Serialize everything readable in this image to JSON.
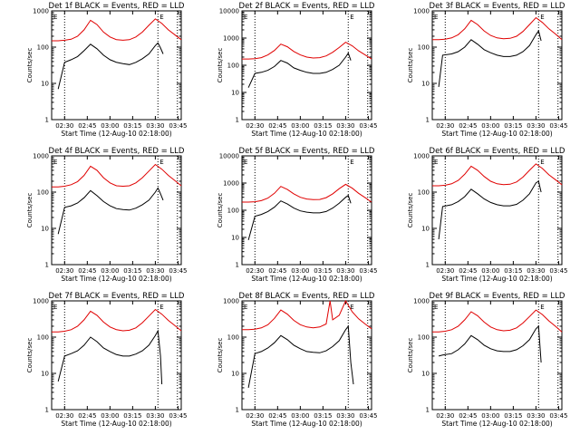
{
  "chart_data": [
    {
      "type": "line",
      "title": "Det 1f BLACK = Events, RED = LLD",
      "xlabel": "Start Time (12-Aug-10 02:18:00)",
      "ylabel": "Counts/sec",
      "ylim": [
        1,
        1000
      ],
      "yscale": "log",
      "xlim": [
        0,
        100
      ],
      "xtick_labels": [
        "02:30",
        "02:45",
        "03:00",
        "03:15",
        "03:30",
        "03:45"
      ],
      "ytick_labels": [
        "1",
        "10",
        "100",
        "1000"
      ],
      "vlines": [
        10,
        82,
        97
      ],
      "marker": "E",
      "series": [
        {
          "name": "Events",
          "color": "#000000",
          "x": [
            0,
            5,
            10,
            15,
            20,
            25,
            30,
            35,
            40,
            45,
            50,
            55,
            60,
            65,
            70,
            75,
            80,
            82,
            84,
            86
          ],
          "y": [
            null,
            7,
            38,
            45,
            55,
            80,
            120,
            90,
            60,
            45,
            38,
            35,
            33,
            38,
            48,
            65,
            110,
            130,
            95,
            65
          ]
        },
        {
          "name": "LLD",
          "color": "#e00000",
          "x": [
            0,
            5,
            10,
            15,
            20,
            25,
            30,
            35,
            40,
            45,
            50,
            55,
            60,
            65,
            70,
            75,
            80,
            85,
            90,
            95,
            100
          ],
          "y": [
            150,
            150,
            155,
            165,
            200,
            300,
            550,
            420,
            260,
            190,
            160,
            155,
            160,
            190,
            260,
            400,
            600,
            450,
            300,
            220,
            160
          ]
        }
      ]
    },
    {
      "type": "line",
      "title": "Det 2f BLACK = Events, RED = LLD",
      "xlabel": "Start Time (12-Aug-10 02:18:00)",
      "ylabel": "Counts/sec",
      "ylim": [
        1,
        10000
      ],
      "yscale": "log",
      "xlim": [
        0,
        100
      ],
      "xtick_labels": [
        "02:30",
        "02:45",
        "03:00",
        "03:15",
        "03:30",
        "03:45"
      ],
      "ytick_labels": [
        "1",
        "10",
        "100",
        "1000",
        "10000"
      ],
      "vlines": [
        10,
        82,
        97
      ],
      "marker": "E",
      "series": [
        {
          "name": "Events",
          "color": "#000000",
          "x": [
            0,
            5,
            10,
            15,
            20,
            25,
            30,
            35,
            40,
            45,
            50,
            55,
            60,
            65,
            70,
            75,
            80,
            82,
            84
          ],
          "y": [
            null,
            15,
            50,
            55,
            65,
            90,
            150,
            120,
            80,
            65,
            55,
            50,
            50,
            55,
            70,
            100,
            200,
            280,
            150
          ]
        },
        {
          "name": "LLD",
          "color": "#e00000",
          "x": [
            0,
            5,
            10,
            15,
            20,
            25,
            30,
            35,
            40,
            45,
            50,
            55,
            60,
            65,
            70,
            75,
            80,
            85,
            90,
            95,
            100
          ],
          "y": [
            170,
            170,
            175,
            190,
            240,
            350,
            600,
            480,
            320,
            240,
            200,
            185,
            190,
            220,
            300,
            450,
            700,
            520,
            340,
            240,
            170
          ]
        }
      ]
    },
    {
      "type": "line",
      "title": "Det 3f BLACK = Events, RED = LLD",
      "xlabel": "Start Time (12-Aug-10 02:18:00)",
      "ylabel": "Counts/sec",
      "ylim": [
        1,
        1000
      ],
      "yscale": "log",
      "xlim": [
        0,
        100
      ],
      "xtick_labels": [
        "02:30",
        "02:45",
        "03:00",
        "03:15",
        "03:30",
        "03:45"
      ],
      "ytick_labels": [
        "1",
        "10",
        "100",
        "1000"
      ],
      "vlines": [
        10,
        82,
        97
      ],
      "marker": "E",
      "series": [
        {
          "name": "Events",
          "color": "#000000",
          "x": [
            0,
            5,
            8,
            15,
            20,
            25,
            30,
            35,
            40,
            45,
            50,
            55,
            60,
            65,
            70,
            75,
            80,
            82,
            84
          ],
          "y": [
            null,
            8,
            60,
            65,
            75,
            100,
            160,
            120,
            85,
            70,
            60,
            55,
            55,
            60,
            75,
            110,
            220,
            280,
            150
          ]
        },
        {
          "name": "LLD",
          "color": "#e00000",
          "x": [
            0,
            5,
            10,
            15,
            20,
            25,
            30,
            35,
            40,
            45,
            50,
            55,
            60,
            65,
            70,
            75,
            80,
            85,
            90,
            95,
            100
          ],
          "y": [
            160,
            160,
            165,
            180,
            220,
            320,
            550,
            420,
            280,
            210,
            180,
            170,
            175,
            200,
            270,
            420,
            650,
            480,
            320,
            230,
            160
          ]
        }
      ]
    },
    {
      "type": "line",
      "title": "Det 4f BLACK = Events, RED = LLD",
      "xlabel": "Start Time (12-Aug-10 02:18:00)",
      "ylabel": "Counts/sec",
      "ylim": [
        1,
        1000
      ],
      "yscale": "log",
      "xlim": [
        0,
        100
      ],
      "xtick_labels": [
        "02:30",
        "02:45",
        "03:00",
        "03:15",
        "03:30",
        "03:45"
      ],
      "ytick_labels": [
        "1",
        "10",
        "100",
        "1000"
      ],
      "vlines": [
        10,
        82,
        97
      ],
      "marker": "E",
      "series": [
        {
          "name": "Events",
          "color": "#000000",
          "x": [
            0,
            5,
            10,
            15,
            20,
            25,
            30,
            35,
            40,
            45,
            50,
            55,
            60,
            65,
            70,
            75,
            80,
            82,
            84,
            86
          ],
          "y": [
            null,
            7,
            38,
            42,
            50,
            70,
            110,
            80,
            55,
            42,
            35,
            33,
            32,
            36,
            45,
            60,
            100,
            130,
            90,
            60
          ]
        },
        {
          "name": "LLD",
          "color": "#e00000",
          "x": [
            0,
            5,
            10,
            15,
            20,
            25,
            30,
            35,
            40,
            45,
            50,
            55,
            60,
            65,
            70,
            75,
            80,
            85,
            90,
            95,
            100
          ],
          "y": [
            140,
            140,
            145,
            160,
            195,
            290,
            520,
            400,
            250,
            180,
            150,
            145,
            150,
            180,
            250,
            380,
            580,
            430,
            290,
            210,
            150
          ]
        }
      ]
    },
    {
      "type": "line",
      "title": "Det 5f BLACK = Events, RED = LLD",
      "xlabel": "Start Time (12-Aug-10 02:18:00)",
      "ylabel": "Counts/sec",
      "ylim": [
        1,
        10000
      ],
      "yscale": "log",
      "xlim": [
        0,
        100
      ],
      "xtick_labels": [
        "02:30",
        "02:45",
        "03:00",
        "03:15",
        "03:30",
        "03:45"
      ],
      "ytick_labels": [
        "1",
        "10",
        "100",
        "1000",
        "10000"
      ],
      "vlines": [
        10,
        82,
        97
      ],
      "marker": "E",
      "series": [
        {
          "name": "Events",
          "color": "#000000",
          "x": [
            0,
            5,
            10,
            15,
            20,
            25,
            30,
            35,
            40,
            45,
            50,
            55,
            60,
            65,
            70,
            75,
            80,
            82,
            84
          ],
          "y": [
            null,
            8,
            60,
            70,
            90,
            130,
            220,
            170,
            120,
            95,
            85,
            80,
            80,
            90,
            120,
            180,
            300,
            350,
            180
          ]
        },
        {
          "name": "LLD",
          "color": "#e00000",
          "x": [
            0,
            5,
            10,
            15,
            20,
            25,
            30,
            35,
            40,
            45,
            50,
            55,
            60,
            65,
            70,
            75,
            80,
            85,
            90,
            95,
            100
          ],
          "y": [
            200,
            200,
            205,
            225,
            280,
            420,
            750,
            580,
            400,
            300,
            260,
            245,
            250,
            290,
            400,
            620,
            900,
            650,
            420,
            290,
            200
          ]
        }
      ]
    },
    {
      "type": "line",
      "title": "Det 6f BLACK = Events, RED = LLD",
      "xlabel": "Start Time (12-Aug-10 02:18:00)",
      "ylabel": "Counts/sec",
      "ylim": [
        1,
        1000
      ],
      "yscale": "log",
      "xlim": [
        0,
        100
      ],
      "xtick_labels": [
        "02:30",
        "02:45",
        "03:00",
        "03:15",
        "03:30",
        "03:45"
      ],
      "ytick_labels": [
        "1",
        "10",
        "100",
        "1000"
      ],
      "vlines": [
        10,
        82,
        97
      ],
      "marker": "E",
      "series": [
        {
          "name": "Events",
          "color": "#000000",
          "x": [
            0,
            5,
            8,
            15,
            20,
            25,
            30,
            35,
            40,
            45,
            50,
            55,
            60,
            65,
            70,
            75,
            80,
            82,
            84
          ],
          "y": [
            null,
            5,
            40,
            45,
            55,
            75,
            120,
            90,
            65,
            52,
            45,
            42,
            42,
            46,
            60,
            90,
            180,
            200,
            100
          ]
        },
        {
          "name": "LLD",
          "color": "#e00000",
          "x": [
            0,
            5,
            10,
            15,
            20,
            25,
            30,
            35,
            40,
            45,
            50,
            55,
            60,
            65,
            70,
            75,
            80,
            85,
            90,
            95,
            100
          ],
          "y": [
            150,
            150,
            155,
            170,
            210,
            310,
            520,
            400,
            270,
            200,
            170,
            160,
            165,
            190,
            260,
            400,
            600,
            450,
            300,
            220,
            160
          ]
        }
      ]
    },
    {
      "type": "line",
      "title": "Det 7f BLACK = Events, RED = LLD",
      "xlabel": "Start Time (12-Aug-10 02:18:00)",
      "ylabel": "Counts/sec",
      "ylim": [
        1,
        1000
      ],
      "yscale": "log",
      "xlim": [
        0,
        100
      ],
      "xtick_labels": [
        "02:30",
        "02:45",
        "03:00",
        "03:15",
        "03:30",
        "03:45"
      ],
      "ytick_labels": [
        "1",
        "10",
        "100",
        "1000"
      ],
      "vlines": [
        10,
        82,
        97
      ],
      "marker": "E",
      "series": [
        {
          "name": "Events",
          "color": "#000000",
          "x": [
            0,
            5,
            10,
            15,
            20,
            25,
            30,
            35,
            40,
            45,
            50,
            55,
            60,
            65,
            70,
            75,
            80,
            82,
            84,
            85
          ],
          "y": [
            null,
            6,
            30,
            35,
            42,
            60,
            100,
            75,
            50,
            40,
            33,
            30,
            30,
            34,
            42,
            60,
            110,
            150,
            30,
            5
          ]
        },
        {
          "name": "LLD",
          "color": "#e00000",
          "x": [
            0,
            5,
            10,
            15,
            20,
            25,
            30,
            35,
            40,
            45,
            50,
            55,
            60,
            65,
            70,
            75,
            80,
            85,
            90,
            95,
            100
          ],
          "y": [
            140,
            140,
            145,
            160,
            200,
            300,
            520,
            400,
            260,
            190,
            160,
            150,
            155,
            180,
            250,
            380,
            580,
            430,
            290,
            210,
            150
          ]
        }
      ]
    },
    {
      "type": "line",
      "title": "Det 8f BLACK = Events, RED = LLD",
      "xlabel": "Start Time (12-Aug-10 02:18:00)",
      "ylabel": "Counts/sec",
      "ylim": [
        1,
        1000
      ],
      "yscale": "log",
      "xlim": [
        0,
        100
      ],
      "xtick_labels": [
        "02:30",
        "02:45",
        "03:00",
        "03:15",
        "03:30",
        "03:45"
      ],
      "ytick_labels": [
        "1",
        "10",
        "100",
        "1000"
      ],
      "vlines": [
        10,
        82,
        97
      ],
      "marker": "E",
      "series": [
        {
          "name": "Events",
          "color": "#000000",
          "x": [
            0,
            5,
            10,
            15,
            20,
            25,
            30,
            35,
            40,
            45,
            50,
            55,
            60,
            65,
            70,
            75,
            80,
            82,
            84,
            86
          ],
          "y": [
            null,
            4,
            35,
            40,
            50,
            70,
            110,
            85,
            60,
            48,
            40,
            38,
            37,
            42,
            55,
            80,
            160,
            200,
            20,
            5
          ]
        },
        {
          "name": "LLD",
          "color": "#e00000",
          "x": [
            0,
            5,
            10,
            15,
            20,
            25,
            30,
            35,
            40,
            45,
            50,
            55,
            60,
            65,
            68,
            70,
            75,
            80,
            85,
            90,
            95,
            100
          ],
          "y": [
            160,
            160,
            165,
            180,
            220,
            330,
            560,
            430,
            290,
            220,
            190,
            180,
            190,
            230,
            1000,
            300,
            400,
            1000,
            500,
            320,
            230,
            170
          ]
        }
      ]
    },
    {
      "type": "line",
      "title": "Det 9f BLACK = Events, RED = LLD",
      "xlabel": "Start Time (12-Aug-10 02:18:00)",
      "ylabel": "Counts/sec",
      "ylim": [
        1,
        1000
      ],
      "yscale": "log",
      "xlim": [
        0,
        100
      ],
      "xtick_labels": [
        "02:30",
        "02:45",
        "03:00",
        "03:15",
        "03:30",
        "03:45"
      ],
      "ytick_labels": [
        "1",
        "10",
        "100",
        "1000"
      ],
      "vlines": [
        10,
        82,
        97
      ],
      "marker": "E",
      "series": [
        {
          "name": "Events",
          "color": "#000000",
          "x": [
            0,
            5,
            8,
            15,
            20,
            25,
            30,
            35,
            40,
            45,
            50,
            55,
            60,
            65,
            70,
            75,
            80,
            82,
            84
          ],
          "y": [
            null,
            30,
            32,
            35,
            45,
            65,
            110,
            85,
            60,
            48,
            42,
            40,
            40,
            45,
            58,
            85,
            170,
            200,
            20
          ]
        },
        {
          "name": "LLD",
          "color": "#e00000",
          "x": [
            0,
            5,
            10,
            15,
            20,
            25,
            30,
            35,
            40,
            45,
            50,
            55,
            60,
            65,
            70,
            75,
            80,
            85,
            90,
            95,
            100
          ],
          "y": [
            140,
            140,
            145,
            160,
            200,
            300,
            500,
            390,
            260,
            190,
            160,
            150,
            155,
            180,
            245,
            370,
            560,
            420,
            280,
            200,
            140
          ]
        }
      ]
    }
  ]
}
